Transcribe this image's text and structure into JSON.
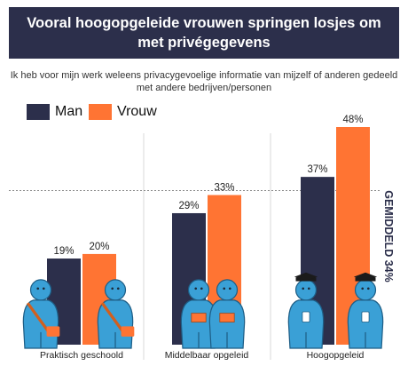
{
  "header": {
    "title": "Vooral hoogopgeleide vrouwen springen losjes om met privégegevens",
    "subtitle": "Ik heb voor mijn werk weleens privacygevoelige informatie van mijzelf of anderen gedeeld met andere bedrijven/personen"
  },
  "legend": [
    {
      "label": "Man",
      "color": "#2c2f4b"
    },
    {
      "label": "Vrouw",
      "color": "#ff7433"
    }
  ],
  "average_label": "GEMIDDELD 34%",
  "colors": {
    "figure": "#3aa0d6",
    "figure_dark": "#1e5e86",
    "accent": "#2c2f4b"
  },
  "chart_data": {
    "type": "bar",
    "categories": [
      "Praktisch geschoold",
      "Middelbaar opgeleid",
      "Hoogopgeleid"
    ],
    "series": [
      {
        "name": "Man",
        "values": [
          19,
          29,
          37
        ]
      },
      {
        "name": "Vrouw",
        "values": [
          20,
          33,
          48
        ]
      }
    ],
    "value_labels": [
      [
        "19%",
        "20%"
      ],
      [
        "29%",
        "33%"
      ],
      [
        "37%",
        "48%"
      ]
    ],
    "reference_line": {
      "value": 34,
      "style": "dashed"
    },
    "ylim": [
      0,
      48
    ],
    "grid": false,
    "legend_position": "top-left"
  }
}
